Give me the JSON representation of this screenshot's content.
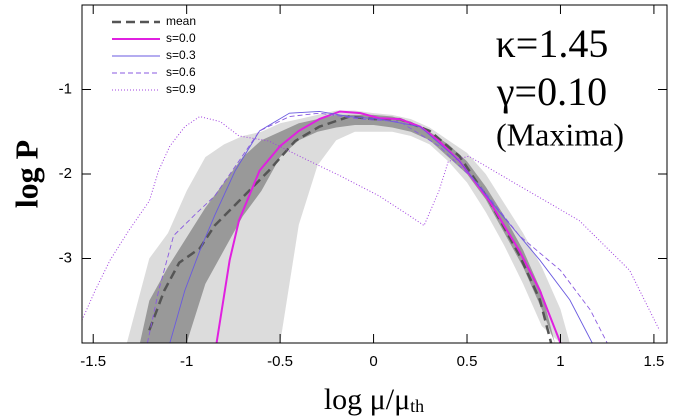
{
  "chart_data": {
    "type": "line",
    "xlabel": "log μ/μ",
    "xlabel_sub": "th",
    "ylabel": "log P",
    "annotations": [
      "κ=1.45",
      "γ=0.10",
      "(Maxima)"
    ],
    "xlim": [
      -1.56,
      1.57
    ],
    "ylim": [
      -4,
      0
    ],
    "xticks": [
      -1.5,
      -1,
      -0.5,
      0,
      0.5,
      1,
      1.5
    ],
    "yticks": [
      -1,
      -2,
      -3
    ],
    "legend": "upper left",
    "bands": [
      {
        "color": "#dcdcdc",
        "x": [
          -1.32,
          -1.2,
          -1.1,
          -1.0,
          -0.9,
          -0.8,
          -0.7,
          -0.6,
          -0.5,
          -0.4,
          -0.3,
          -0.2,
          -0.1,
          0,
          0.1,
          0.2,
          0.3,
          0.4,
          0.5,
          0.6,
          0.7,
          0.8,
          0.9,
          1.0,
          1.05
        ],
        "upper": [
          -4,
          -3.0,
          -2.7,
          -2.2,
          -1.8,
          -1.65,
          -1.55,
          -1.5,
          -1.4,
          -1.35,
          -1.3,
          -1.25,
          -1.25,
          -1.28,
          -1.3,
          -1.35,
          -1.45,
          -1.6,
          -1.75,
          -2.0,
          -2.35,
          -2.7,
          -3.1,
          -3.6,
          -4
        ],
        "lower": [
          -4,
          -4,
          -4,
          -4,
          -4,
          -4,
          -4,
          -4,
          -4,
          -2.6,
          -1.9,
          -1.6,
          -1.5,
          -1.5,
          -1.5,
          -1.55,
          -1.65,
          -1.85,
          -2.1,
          -2.45,
          -2.85,
          -3.3,
          -3.8,
          -4,
          -4
        ]
      },
      {
        "color": "#999999",
        "x": [
          -1.25,
          -1.2,
          -1.1,
          -1.0,
          -0.9,
          -0.8,
          -0.7,
          -0.6,
          -0.5,
          -0.4,
          -0.3,
          -0.2,
          -0.1,
          0,
          0.1,
          0.2,
          0.3,
          0.4,
          0.5,
          0.6,
          0.7,
          0.8,
          0.9,
          0.97
        ],
        "upper": [
          -4,
          -3.5,
          -3.1,
          -2.75,
          -2.4,
          -2.1,
          -1.8,
          -1.6,
          -1.5,
          -1.4,
          -1.35,
          -1.3,
          -1.3,
          -1.3,
          -1.32,
          -1.38,
          -1.5,
          -1.65,
          -1.85,
          -2.15,
          -2.5,
          -2.9,
          -3.4,
          -4
        ],
        "lower": [
          -4,
          -4,
          -4,
          -4,
          -3.3,
          -2.9,
          -2.5,
          -2.2,
          -1.8,
          -1.6,
          -1.5,
          -1.45,
          -1.42,
          -1.42,
          -1.45,
          -1.5,
          -1.6,
          -1.8,
          -2.0,
          -2.3,
          -2.7,
          -3.1,
          -3.6,
          -4
        ]
      }
    ],
    "series": [
      {
        "name": "mean",
        "color": "#555555",
        "style": "dashed",
        "width": 2.5,
        "x": [
          -1.2,
          -1.12,
          -1.04,
          -0.93,
          -0.85,
          -0.72,
          -0.56,
          -0.42,
          -0.29,
          -0.13,
          0,
          0.14,
          0.3,
          0.46,
          0.62,
          0.78,
          0.89,
          0.95
        ],
        "values": [
          -3.85,
          -3.38,
          -3.05,
          -2.88,
          -2.61,
          -2.32,
          -1.96,
          -1.61,
          -1.44,
          -1.32,
          -1.35,
          -1.35,
          -1.49,
          -1.79,
          -2.32,
          -2.96,
          -3.49,
          -4
        ]
      },
      {
        "name": "s=0.0",
        "color": "#e020e0",
        "style": "solid",
        "width": 2,
        "x": [
          -0.84,
          -0.77,
          -0.72,
          -0.61,
          -0.5,
          -0.4,
          -0.29,
          -0.18,
          -0.07,
          0.03,
          0.14,
          0.25,
          0.35,
          0.46,
          0.62,
          0.78,
          0.89,
          1.0
        ],
        "values": [
          -4,
          -3.02,
          -2.55,
          -1.96,
          -1.67,
          -1.49,
          -1.35,
          -1.26,
          -1.28,
          -1.34,
          -1.35,
          -1.44,
          -1.61,
          -1.85,
          -2.32,
          -2.91,
          -3.38,
          -4
        ]
      },
      {
        "name": "s=0.3",
        "color": "#6a5ae0",
        "style": "solid",
        "width": 0.9,
        "x": [
          -1.09,
          -1.01,
          -0.93,
          -0.85,
          -0.74,
          -0.61,
          -0.45,
          -0.29,
          -0.13,
          0.03,
          0.25,
          0.46,
          0.67,
          0.89,
          1.05,
          1.17
        ],
        "values": [
          -4,
          -3.38,
          -2.91,
          -2.49,
          -1.96,
          -1.49,
          -1.28,
          -1.26,
          -1.32,
          -1.35,
          -1.44,
          -1.85,
          -2.44,
          -3.02,
          -3.49,
          -4
        ]
      },
      {
        "name": "s=0.6",
        "color": "#8a5ae0",
        "style": "dashed-thin",
        "width": 0.9,
        "x": [
          -1.21,
          -1.15,
          -1.07,
          -0.96,
          -0.85,
          -0.74,
          -0.61,
          -0.45,
          -0.29,
          -0.07,
          0.14,
          0.35,
          0.57,
          0.78,
          1.0,
          1.16,
          1.25
        ],
        "values": [
          -4,
          -3.38,
          -2.73,
          -2.49,
          -2.26,
          -1.91,
          -1.49,
          -1.32,
          -1.28,
          -1.35,
          -1.38,
          -1.67,
          -2.14,
          -2.73,
          -3.14,
          -3.61,
          -4
        ]
      },
      {
        "name": "s=0.9",
        "color": "#a040e0",
        "style": "dotted",
        "width": 1,
        "x": [
          -1.56,
          -1.49,
          -1.41,
          -1.31,
          -1.2,
          -1.15,
          -1.09,
          -1.01,
          -0.93,
          -0.82,
          -0.72,
          -0.56,
          -0.34,
          -0.18,
          0.03,
          0.19,
          0.27,
          0.35,
          0.4,
          0.51,
          0.78,
          1.1,
          1.37,
          1.53
        ],
        "values": [
          -3.73,
          -3.38,
          -3.02,
          -2.67,
          -2.32,
          -1.96,
          -1.67,
          -1.44,
          -1.32,
          -1.38,
          -1.55,
          -1.61,
          -1.85,
          -2.02,
          -2.26,
          -2.49,
          -2.61,
          -2.2,
          -1.85,
          -1.79,
          -2.14,
          -2.55,
          -3.14,
          -3.85
        ]
      }
    ]
  }
}
